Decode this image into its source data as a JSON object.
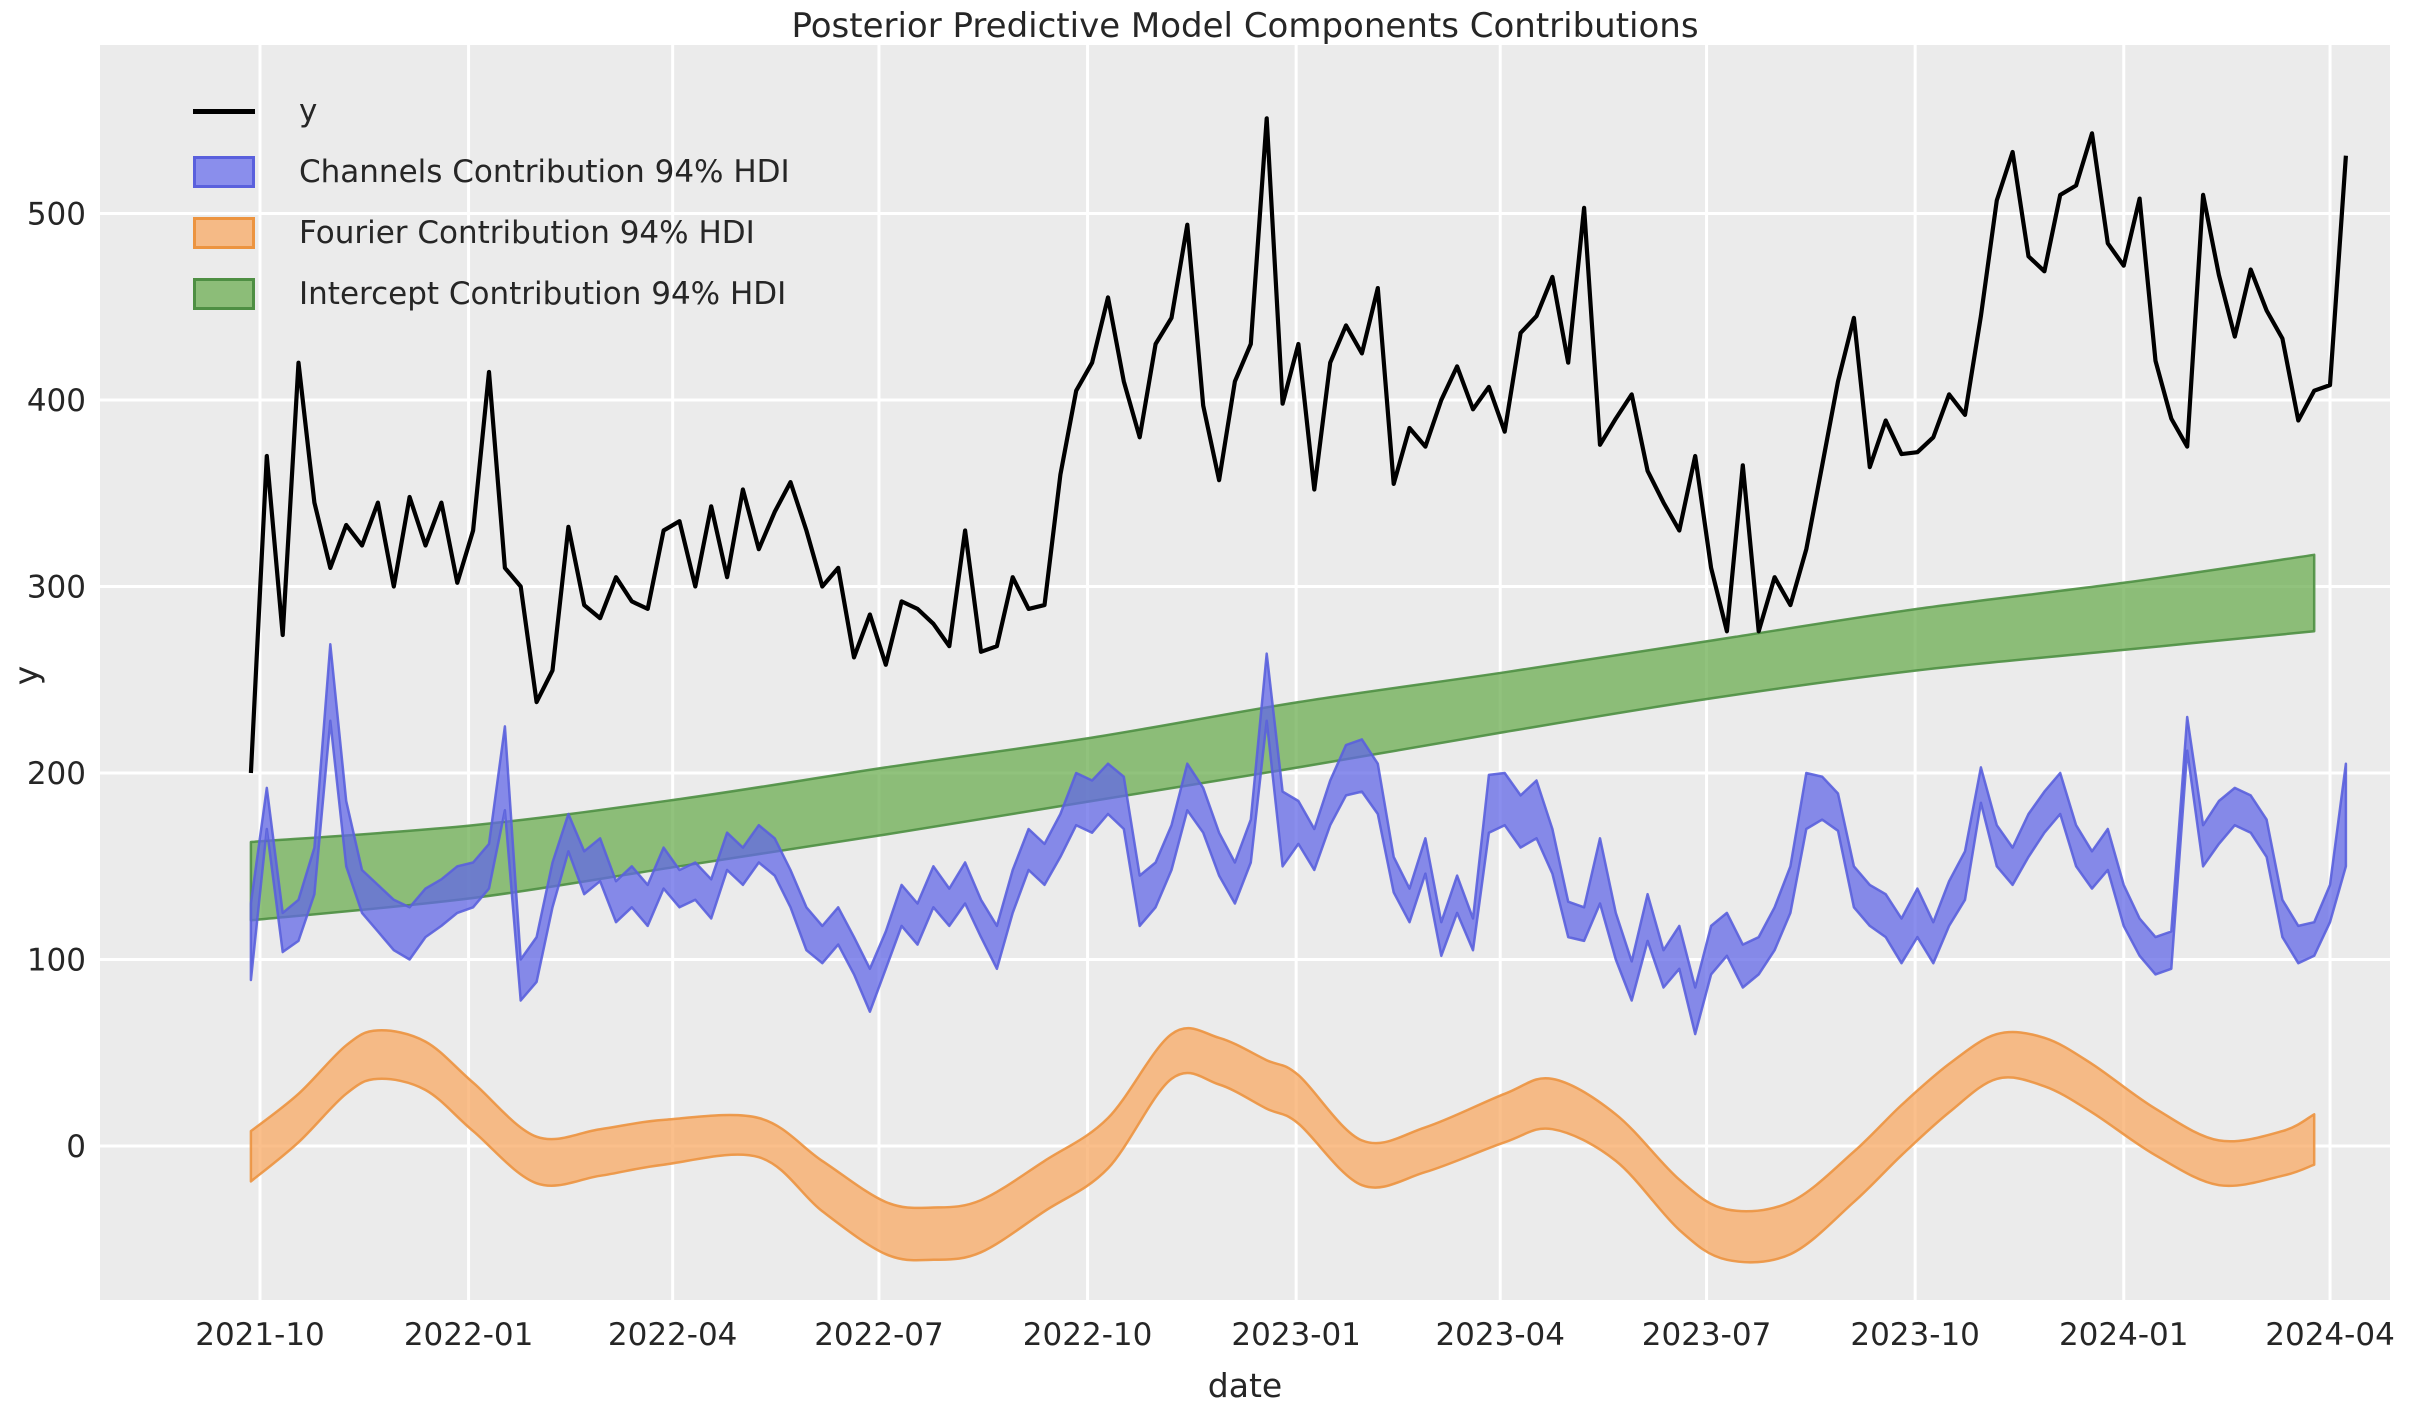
{
  "chart_data": {
    "type": "line",
    "title": "Posterior Predictive Model Components Contributions",
    "xlabel": "date",
    "ylabel": "y",
    "grid": true,
    "legend_position": "upper left",
    "background_plot": "#ebebeb",
    "grid_color": "#ffffff",
    "text_color": "#262626",
    "ylim": [
      -83,
      590
    ],
    "xlim": [
      "2021-07-22",
      "2024-04-27"
    ],
    "y_ticks": [
      0,
      100,
      200,
      300,
      400,
      500
    ],
    "x_ticks": [
      {
        "label": "2021-10",
        "date": "2021-10-01"
      },
      {
        "label": "2022-01",
        "date": "2022-01-01"
      },
      {
        "label": "2022-04",
        "date": "2022-04-01"
      },
      {
        "label": "2022-07",
        "date": "2022-07-01"
      },
      {
        "label": "2022-10",
        "date": "2022-10-01"
      },
      {
        "label": "2023-01",
        "date": "2023-01-01"
      },
      {
        "label": "2023-04",
        "date": "2023-04-01"
      },
      {
        "label": "2023-07",
        "date": "2023-07-01"
      },
      {
        "label": "2023-10",
        "date": "2023-10-01"
      },
      {
        "label": "2024-01",
        "date": "2024-01-01"
      },
      {
        "label": "2024-04",
        "date": "2024-04-01"
      }
    ],
    "legend": [
      {
        "label": "y",
        "type": "line",
        "color": "#000000"
      },
      {
        "label": "Channels Contribution 94% HDI",
        "type": "patch",
        "fill": "#8a8eec",
        "edge": "#5a60dd"
      },
      {
        "label": "Fourier Contribution 94% HDI",
        "type": "patch",
        "fill": "#f5ba86",
        "edge": "#ec9440"
      },
      {
        "label": "Intercept Contribution 94% HDI",
        "type": "patch",
        "fill": "#8cbd78",
        "edge": "#4e8f43"
      }
    ],
    "series": {
      "y": {
        "name": "y",
        "color": "#000000",
        "start_date": "2021-09-27",
        "interval_days": 7,
        "values": [
          200,
          370,
          274,
          420,
          345,
          310,
          333,
          322,
          345,
          300,
          348,
          322,
          345,
          302,
          330,
          415,
          310,
          300,
          238,
          255,
          332,
          290,
          283,
          305,
          292,
          288,
          330,
          335,
          300,
          343,
          305,
          352,
          320,
          340,
          356,
          330,
          300,
          310,
          262,
          285,
          258,
          292,
          288,
          280,
          268,
          330,
          265,
          268,
          305,
          288,
          290,
          360,
          405,
          420,
          455,
          410,
          380,
          430,
          444,
          494,
          397,
          357,
          410,
          430,
          551,
          398,
          430,
          352,
          420,
          440,
          425,
          460,
          355,
          385,
          375,
          400,
          418,
          395,
          407,
          383,
          436,
          445,
          466,
          420,
          503,
          376,
          390,
          403,
          362,
          345,
          330,
          370,
          310,
          276,
          365,
          276,
          305,
          290,
          320,
          365,
          410,
          444,
          364,
          389,
          371,
          372,
          380,
          403,
          392,
          445,
          507,
          533,
          477,
          469,
          510,
          515,
          543,
          484,
          472,
          508,
          421,
          390,
          375,
          510,
          467,
          434,
          470,
          448,
          433,
          389,
          405,
          408,
          531
        ]
      },
      "channels_hdi": {
        "name": "Channels Contribution 94% HDI",
        "fill": "#6368e7",
        "edge": "#5a60dd",
        "start_date": "2021-09-27",
        "interval_days": 7,
        "lower": [
          89,
          170,
          104,
          110,
          135,
          228,
          150,
          125,
          115,
          105,
          100,
          112,
          118,
          125,
          128,
          138,
          180,
          78,
          88,
          128,
          158,
          135,
          142,
          120,
          128,
          118,
          138,
          128,
          132,
          122,
          148,
          140,
          152,
          145,
          128,
          105,
          98,
          108,
          92,
          72,
          95,
          118,
          108,
          128,
          118,
          130,
          112,
          95,
          125,
          148,
          140,
          155,
          172,
          168,
          178,
          170,
          118,
          128,
          148,
          180,
          168,
          145,
          130,
          152,
          228,
          150,
          162,
          148,
          172,
          188,
          190,
          178,
          136,
          120,
          146,
          102,
          125,
          105,
          168,
          172,
          160,
          165,
          146,
          112,
          110,
          130,
          100,
          78,
          110,
          85,
          95,
          60,
          92,
          102,
          85,
          92,
          105,
          125,
          170,
          175,
          169,
          128,
          118,
          112,
          98,
          112,
          98,
          118,
          132,
          184,
          150,
          140,
          155,
          168,
          178,
          150,
          138,
          148,
          118,
          102,
          92,
          95,
          212,
          150,
          162,
          172,
          168,
          155,
          112,
          98,
          102,
          120,
          150
        ],
        "upper": [
          130,
          192,
          125,
          132,
          160,
          269,
          185,
          148,
          140,
          132,
          128,
          138,
          143,
          150,
          152,
          162,
          225,
          100,
          112,
          152,
          178,
          158,
          165,
          142,
          150,
          140,
          160,
          148,
          152,
          143,
          168,
          160,
          172,
          165,
          148,
          128,
          118,
          128,
          112,
          95,
          115,
          140,
          130,
          150,
          138,
          152,
          132,
          118,
          148,
          170,
          162,
          178,
          200,
          196,
          205,
          198,
          145,
          152,
          172,
          205,
          192,
          168,
          152,
          175,
          264,
          190,
          185,
          170,
          196,
          215,
          218,
          205,
          155,
          138,
          165,
          120,
          145,
          122,
          199,
          200,
          188,
          196,
          170,
          131,
          128,
          165,
          125,
          99,
          135,
          105,
          118,
          85,
          118,
          125,
          108,
          112,
          128,
          150,
          200,
          198,
          189,
          150,
          140,
          135,
          122,
          138,
          120,
          142,
          158,
          203,
          172,
          160,
          178,
          190,
          200,
          172,
          158,
          170,
          140,
          122,
          112,
          115,
          230,
          172,
          185,
          192,
          188,
          175,
          132,
          118,
          120,
          140,
          205
        ]
      },
      "fourier_hdi": {
        "name": "Fourier Contribution 94% HDI",
        "fill": "#f8aa64",
        "edge": "#ec9440",
        "dates": [
          "2021-09-27",
          "2021-10-18",
          "2021-11-08",
          "2021-11-22",
          "2021-12-13",
          "2022-01-03",
          "2022-01-31",
          "2022-02-28",
          "2022-03-28",
          "2022-05-09",
          "2022-06-06",
          "2022-07-04",
          "2022-07-25",
          "2022-08-15",
          "2022-09-12",
          "2022-10-10",
          "2022-11-07",
          "2022-11-28",
          "2022-12-19",
          "2023-01-02",
          "2023-01-30",
          "2023-02-27",
          "2023-04-03",
          "2023-04-24",
          "2023-05-22",
          "2023-06-19",
          "2023-07-10",
          "2023-08-07",
          "2023-09-04",
          "2023-09-25",
          "2023-10-16",
          "2023-11-06",
          "2023-11-27",
          "2023-12-18",
          "2024-01-15",
          "2024-02-12",
          "2024-03-11",
          "2024-03-25"
        ],
        "lower": [
          -19,
          2,
          28,
          36,
          30,
          8,
          -20,
          -16,
          -10,
          -6,
          -35,
          -58,
          -61,
          -57,
          -35,
          -12,
          36,
          33,
          20,
          12,
          -21,
          -14,
          2,
          9,
          -8,
          -45,
          -61,
          -58,
          -30,
          -5,
          18,
          36,
          32,
          18,
          -5,
          -21,
          -16,
          -10
        ],
        "upper": [
          8,
          28,
          54,
          62,
          56,
          34,
          5,
          9,
          14,
          15,
          -8,
          -30,
          -33,
          -29,
          -8,
          15,
          60,
          58,
          46,
          38,
          3,
          10,
          28,
          36,
          17,
          -18,
          -34,
          -30,
          -3,
          22,
          44,
          60,
          58,
          44,
          20,
          3,
          8,
          17
        ]
      },
      "intercept_hdi": {
        "name": "Intercept Contribution 94% HDI",
        "fill": "#6cae52",
        "edge": "#4e8f43",
        "dates": [
          "2021-09-27",
          "2022-01-03",
          "2022-04-04",
          "2022-07-04",
          "2022-10-03",
          "2023-01-02",
          "2023-04-03",
          "2023-07-03",
          "2023-10-02",
          "2024-01-01",
          "2024-03-25"
        ],
        "lower": [
          121,
          133,
          150,
          167,
          185,
          203,
          222,
          240,
          255,
          266,
          276
        ],
        "upper": [
          163,
          172,
          186,
          203,
          219,
          238,
          254,
          271,
          288,
          302,
          317
        ]
      }
    }
  }
}
